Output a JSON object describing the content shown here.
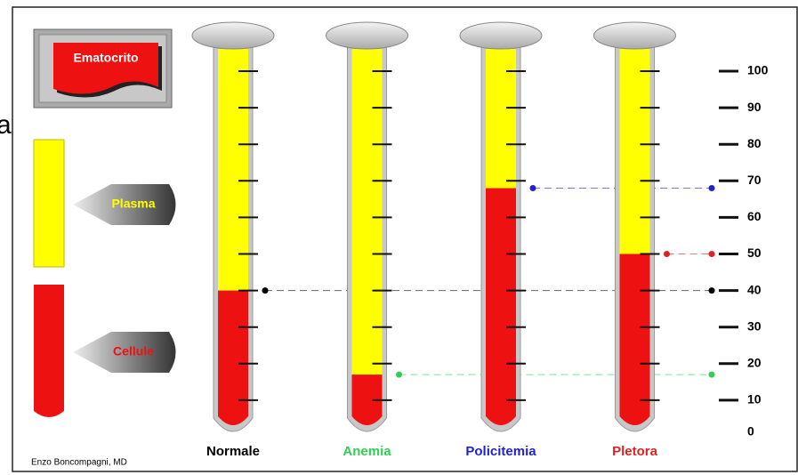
{
  "fragment": "a",
  "badge": "Ematocrito",
  "legend": {
    "plasma": "Plasma",
    "cells": "Cellule"
  },
  "scale": {
    "ticks": [
      0,
      10,
      20,
      30,
      40,
      50,
      60,
      70,
      80,
      90,
      100
    ]
  },
  "tubes": [
    {
      "label": "Normale",
      "color": "#000000",
      "hematocrit": 40
    },
    {
      "label": "Anemia",
      "color": "#33cc55",
      "hematocrit": 17
    },
    {
      "label": "Policitemia",
      "color": "#2222cc",
      "hematocrit": 68
    },
    {
      "label": "Pletora",
      "color": "#dd2222",
      "hematocrit": 50
    }
  ],
  "credit": "Enzo Boncompagni,  MD"
}
